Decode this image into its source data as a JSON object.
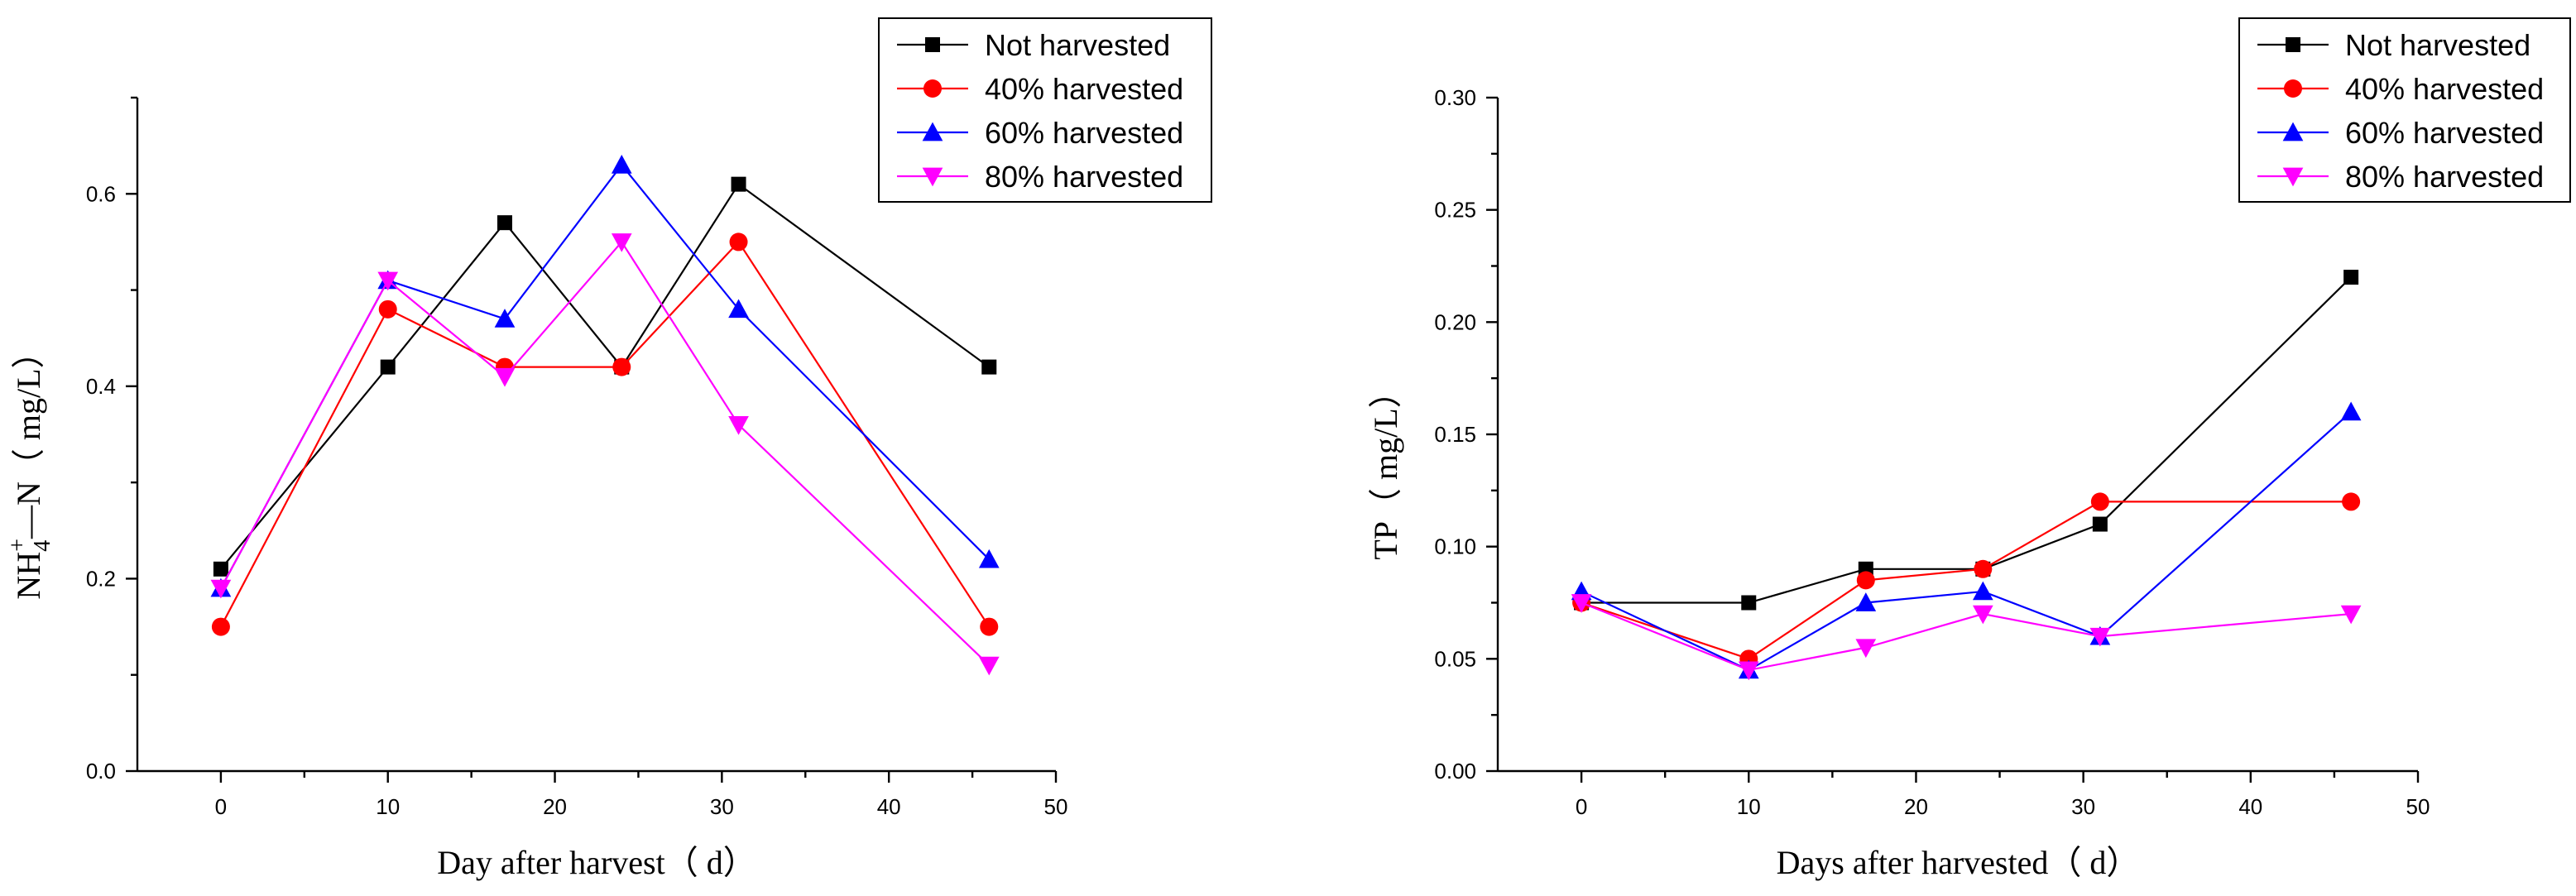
{
  "chart_data": [
    {
      "type": "line",
      "xlabel": "Day after harvest（ d）",
      "ylabel_main": "NH",
      "ylabel_sub": "4",
      "ylabel_sup": "+",
      "ylabel_rest": "—N（ mg/L）",
      "xlim": [
        -5,
        50
      ],
      "ylim": [
        0,
        0.7
      ],
      "xticks": [
        0,
        10,
        20,
        30,
        40,
        50
      ],
      "xtick_labels": [
        "0",
        "10",
        "20",
        "30",
        "40",
        "50"
      ],
      "yticks": [
        0,
        0.2,
        0.4,
        0.6
      ],
      "ytick_labels": [
        "0.0",
        "0.2",
        "0.4",
        "0.6"
      ],
      "legend_position": "top-right",
      "x": [
        0,
        10,
        17,
        24,
        31,
        46
      ],
      "series": [
        {
          "name": "Not harvested",
          "color": "#000000",
          "marker": "square",
          "values": [
            0.21,
            0.42,
            0.57,
            0.42,
            0.61,
            0.42
          ]
        },
        {
          "name": "40% harvested",
          "color": "#ff0000",
          "marker": "circle",
          "values": [
            0.15,
            0.48,
            0.42,
            0.42,
            0.55,
            0.15
          ]
        },
        {
          "name": "60% harvested",
          "color": "#0000ff",
          "marker": "triangle-up",
          "values": [
            0.19,
            0.51,
            0.47,
            0.63,
            0.48,
            0.22
          ]
        },
        {
          "name": "80% harvested",
          "color": "#ff00ff",
          "marker": "triangle-down",
          "values": [
            0.19,
            0.51,
            0.41,
            0.55,
            0.36,
            0.11
          ]
        }
      ]
    },
    {
      "type": "line",
      "xlabel": "Days after harvested（ d）",
      "ylabel": "TP（ mg/L）",
      "xlim": [
        -5,
        50
      ],
      "ylim": [
        0,
        0.3
      ],
      "xticks": [
        0,
        10,
        20,
        30,
        40,
        50
      ],
      "xtick_labels": [
        "0",
        "10",
        "20",
        "30",
        "40",
        "50"
      ],
      "yticks": [
        0,
        0.05,
        0.1,
        0.15,
        0.2,
        0.25,
        0.3
      ],
      "ytick_labels": [
        "0.00",
        "0.05",
        "0.10",
        "0.15",
        "0.20",
        "0.25",
        "0.30"
      ],
      "legend_position": "top-right",
      "x": [
        0,
        10,
        17,
        24,
        31,
        46
      ],
      "series": [
        {
          "name": "Not harvested",
          "color": "#000000",
          "marker": "square",
          "values": [
            0.075,
            0.075,
            0.09,
            0.09,
            0.11,
            0.22
          ]
        },
        {
          "name": "40% harvested",
          "color": "#ff0000",
          "marker": "circle",
          "values": [
            0.075,
            0.05,
            0.085,
            0.09,
            0.12,
            0.12
          ]
        },
        {
          "name": "60% harvested",
          "color": "#0000ff",
          "marker": "triangle-up",
          "values": [
            0.08,
            0.045,
            0.075,
            0.08,
            0.06,
            0.16
          ]
        },
        {
          "name": "80% harvested",
          "color": "#ff00ff",
          "marker": "triangle-down",
          "values": [
            0.075,
            0.045,
            0.055,
            0.07,
            0.06,
            0.07
          ]
        }
      ]
    }
  ]
}
